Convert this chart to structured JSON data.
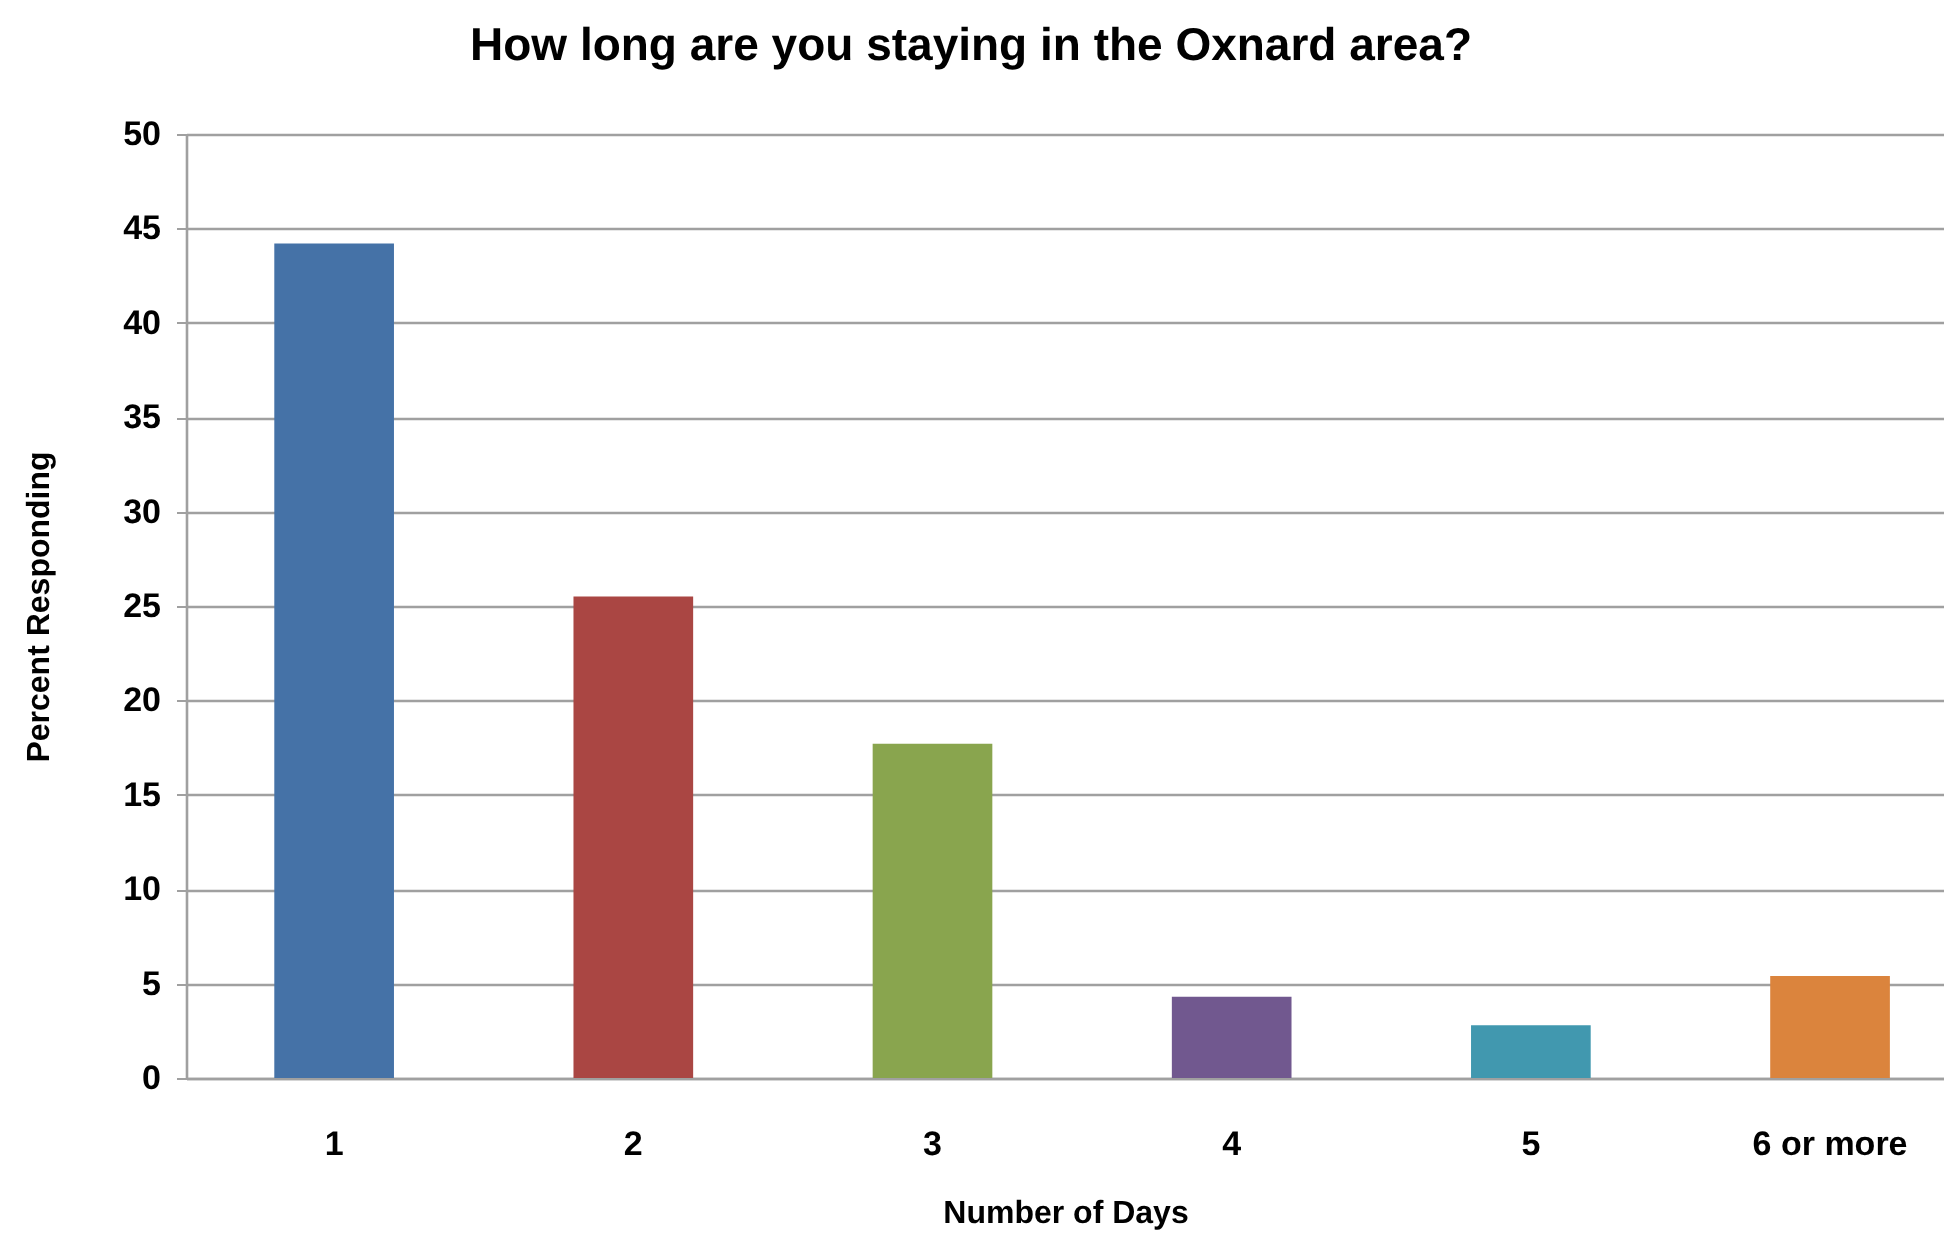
{
  "chart_data": {
    "type": "bar",
    "title": "How long are you staying in the Oxnard area?",
    "xlabel": "Number of Days",
    "ylabel": "Percent Responding",
    "categories": [
      "1",
      "2",
      "3",
      "4",
      "5",
      "6 or more"
    ],
    "values": [
      44.2,
      25.5,
      17.7,
      4.3,
      2.8,
      5.4
    ],
    "colors": [
      "#4572a7",
      "#aa4643",
      "#89a54e",
      "#71588f",
      "#4198af",
      "#db843d"
    ],
    "ylim": [
      0,
      50
    ],
    "yticks": [
      0,
      5,
      10,
      15,
      20,
      25,
      30,
      35,
      40,
      45,
      50
    ],
    "grid": "y"
  }
}
